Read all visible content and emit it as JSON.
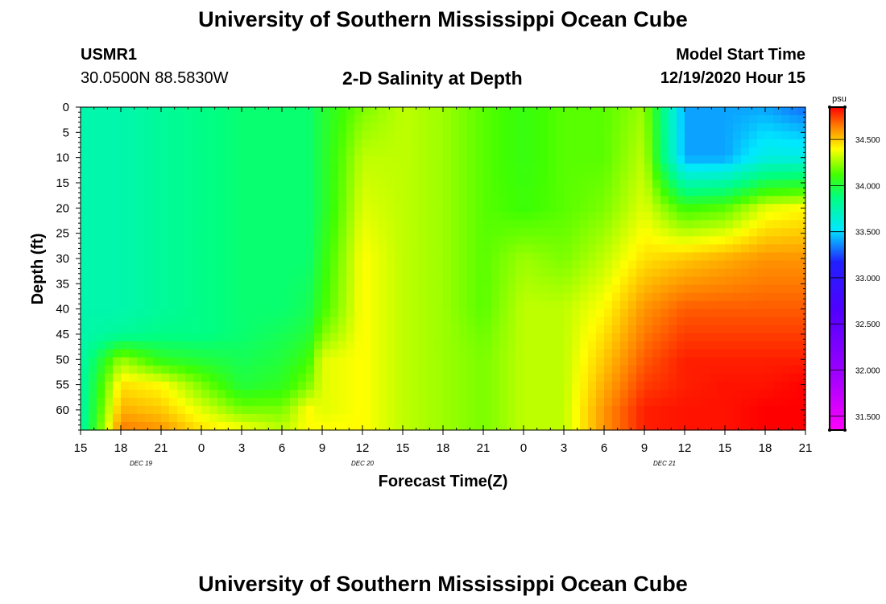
{
  "page": {
    "title_top": "University of Southern Mississippi Ocean Cube",
    "title_bottom": "University of Southern Mississippi Ocean Cube",
    "station_id": "USMR1",
    "station_coords": "30.0500N 88.5830W",
    "plot_title": "2-D Salinity at Depth",
    "start_label": "Model Start Time",
    "start_value": "12/19/2020 Hour 15"
  },
  "chart_data": {
    "type": "heatmap",
    "title": "2-D Salinity at Depth",
    "xlabel": "Forecast Time(Z)",
    "ylabel": "Depth (ft)",
    "x_tick_labels": [
      "15",
      "18",
      "21",
      "0",
      "3",
      "6",
      "9",
      "12",
      "15",
      "18",
      "21",
      "0",
      "3",
      "6",
      "9",
      "12",
      "15",
      "18",
      "21"
    ],
    "date_labels": [
      {
        "text": "DEC 19",
        "tick_index": 1.5
      },
      {
        "text": "DEC 20",
        "tick_index": 7
      },
      {
        "text": "DEC 21",
        "tick_index": 14.5
      }
    ],
    "y_tick_labels": [
      "0",
      "5",
      "10",
      "15",
      "20",
      "25",
      "30",
      "35",
      "40",
      "45",
      "50",
      "55",
      "60"
    ],
    "ylim": [
      0,
      64
    ],
    "xlim_hours": [
      0,
      54
    ],
    "colorbar": {
      "unit": "psu",
      "min": 31.35,
      "max": 34.85,
      "tick_labels": [
        "34.500",
        "34.000",
        "33.500",
        "33.000",
        "32.500",
        "32.000",
        "31.500"
      ],
      "tick_values": [
        34.5,
        34.0,
        33.5,
        33.0,
        32.5,
        32.0,
        31.5
      ]
    },
    "field": {
      "x_hours": [
        0,
        3,
        6,
        9,
        12,
        15,
        17,
        18,
        21,
        24,
        27,
        30,
        33,
        36,
        39,
        42,
        45,
        48,
        51,
        54
      ],
      "depths_ft": [
        0,
        10,
        20,
        30,
        40,
        45,
        50,
        55,
        60,
        64
      ],
      "salinity_psu": [
        [
          33.75,
          33.75,
          33.75,
          33.75,
          33.75,
          33.75,
          33.75,
          33.75,
          33.75,
          33.75
        ],
        [
          33.75,
          33.75,
          33.75,
          33.75,
          33.75,
          33.8,
          34.25,
          34.45,
          34.55,
          34.65
        ],
        [
          33.8,
          33.8,
          33.8,
          33.8,
          33.8,
          33.85,
          34.05,
          34.4,
          34.5,
          34.6
        ],
        [
          33.85,
          33.85,
          33.85,
          33.85,
          33.85,
          33.85,
          34.0,
          34.2,
          34.35,
          34.45
        ],
        [
          33.9,
          33.9,
          33.9,
          33.9,
          33.9,
          33.9,
          33.95,
          34.0,
          34.2,
          34.4
        ],
        [
          33.9,
          33.9,
          33.9,
          33.9,
          33.9,
          33.95,
          34.0,
          34.05,
          34.2,
          34.3
        ],
        [
          33.9,
          33.9,
          33.9,
          33.9,
          33.95,
          34.0,
          34.1,
          34.2,
          34.4,
          34.4
        ],
        [
          34.0,
          34.0,
          34.0,
          34.05,
          34.1,
          34.2,
          34.35,
          34.35,
          34.35,
          34.4
        ],
        [
          34.2,
          34.3,
          34.35,
          34.4,
          34.4,
          34.4,
          34.4,
          34.4,
          34.4,
          34.4
        ],
        [
          34.3,
          34.3,
          34.3,
          34.3,
          34.3,
          34.3,
          34.3,
          34.3,
          34.3,
          34.3
        ],
        [
          34.25,
          34.25,
          34.25,
          34.25,
          34.25,
          34.25,
          34.25,
          34.25,
          34.25,
          34.25
        ],
        [
          34.15,
          34.15,
          34.15,
          34.15,
          34.15,
          34.18,
          34.2,
          34.2,
          34.2,
          34.2
        ],
        [
          34.08,
          34.08,
          34.1,
          34.25,
          34.3,
          34.3,
          34.3,
          34.3,
          34.3,
          34.3
        ],
        [
          34.15,
          34.15,
          34.15,
          34.2,
          34.3,
          34.3,
          34.3,
          34.3,
          34.3,
          34.3
        ],
        [
          34.15,
          34.15,
          34.2,
          34.3,
          34.4,
          34.45,
          34.5,
          34.55,
          34.6,
          34.6
        ],
        [
          34.25,
          34.3,
          34.35,
          34.45,
          34.6,
          34.65,
          34.7,
          34.75,
          34.8,
          34.8
        ],
        [
          33.4,
          33.4,
          34.1,
          34.5,
          34.7,
          34.75,
          34.8,
          34.8,
          34.82,
          34.82
        ],
        [
          33.4,
          33.4,
          34.15,
          34.55,
          34.7,
          34.75,
          34.8,
          34.82,
          34.82,
          34.82
        ],
        [
          33.4,
          33.6,
          34.35,
          34.6,
          34.7,
          34.75,
          34.8,
          34.82,
          34.85,
          34.85
        ],
        [
          33.3,
          33.6,
          34.4,
          34.6,
          34.7,
          34.75,
          34.8,
          34.85,
          34.85,
          34.85
        ]
      ]
    }
  }
}
